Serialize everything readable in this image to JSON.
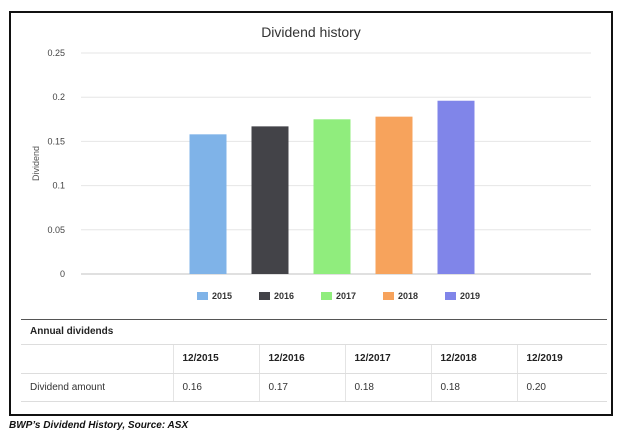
{
  "chart_data": {
    "type": "bar",
    "title": "Dividend history",
    "ylabel": "Dividend",
    "xlabel": "",
    "categories": [
      "2015",
      "2016",
      "2017",
      "2018",
      "2019"
    ],
    "values": [
      0.158,
      0.167,
      0.175,
      0.178,
      0.196
    ],
    "colors": [
      "#7fb3e8",
      "#434348",
      "#90ed7d",
      "#f7a35c",
      "#8085e9"
    ],
    "ylim": [
      0,
      0.25
    ],
    "yticks": [
      "0",
      "0.05",
      "0.1",
      "0.15",
      "0.2",
      "0.25"
    ],
    "ytick_values": [
      0,
      0.05,
      0.1,
      0.15,
      0.2,
      0.25
    ],
    "grid": true,
    "legend_position": "bottom"
  },
  "table": {
    "title": "Annual dividends",
    "columns": [
      "",
      "12/2015",
      "12/2016",
      "12/2017",
      "12/2018",
      "12/2019"
    ],
    "rows": [
      {
        "label": "Dividend amount",
        "values": [
          "0.16",
          "0.17",
          "0.18",
          "0.18",
          "0.20"
        ]
      }
    ]
  },
  "caption": "BWP’s Dividend History, Source: ASX"
}
